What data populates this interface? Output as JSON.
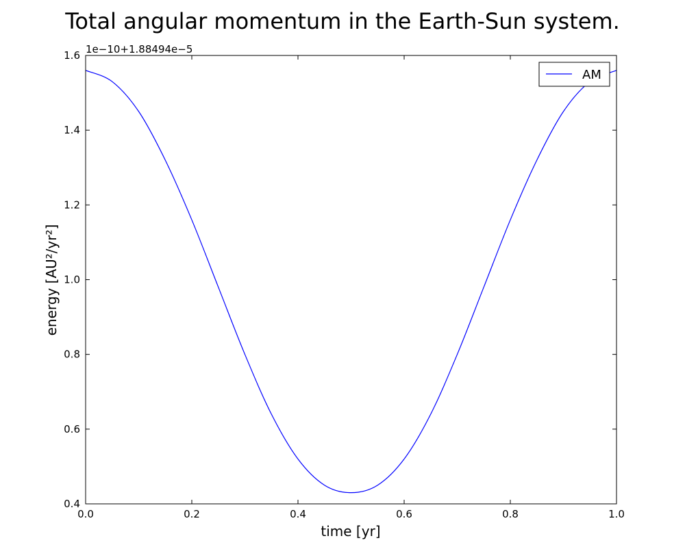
{
  "chart_data": {
    "type": "line",
    "title": "Total angular momentum in the Earth-Sun system.",
    "xlabel": "time [yr]",
    "ylabel": "energy [AU²/yr²]",
    "y_offset_text": "1e−10+1.88494e−5",
    "xlim": [
      0.0,
      1.0
    ],
    "ylim": [
      0.4,
      1.6
    ],
    "x_ticks": [
      "0.0",
      "0.2",
      "0.4",
      "0.6",
      "0.8",
      "1.0"
    ],
    "y_ticks": [
      "0.4",
      "0.6",
      "0.8",
      "1.0",
      "1.2",
      "1.4",
      "1.6"
    ],
    "grid": false,
    "legend_position": "top-right",
    "series": [
      {
        "name": "AM",
        "color": "#0000ff",
        "x": [
          0.0,
          0.05,
          0.1,
          0.15,
          0.2,
          0.25,
          0.3,
          0.35,
          0.4,
          0.45,
          0.5,
          0.55,
          0.6,
          0.65,
          0.7,
          0.75,
          0.8,
          0.85,
          0.9,
          0.95,
          1.0
        ],
        "y": [
          1.56,
          1.53,
          1.45,
          1.32,
          1.16,
          0.98,
          0.8,
          0.64,
          0.52,
          0.45,
          0.43,
          0.45,
          0.52,
          0.64,
          0.8,
          0.98,
          1.16,
          1.32,
          1.45,
          1.53,
          1.56
        ]
      }
    ]
  }
}
